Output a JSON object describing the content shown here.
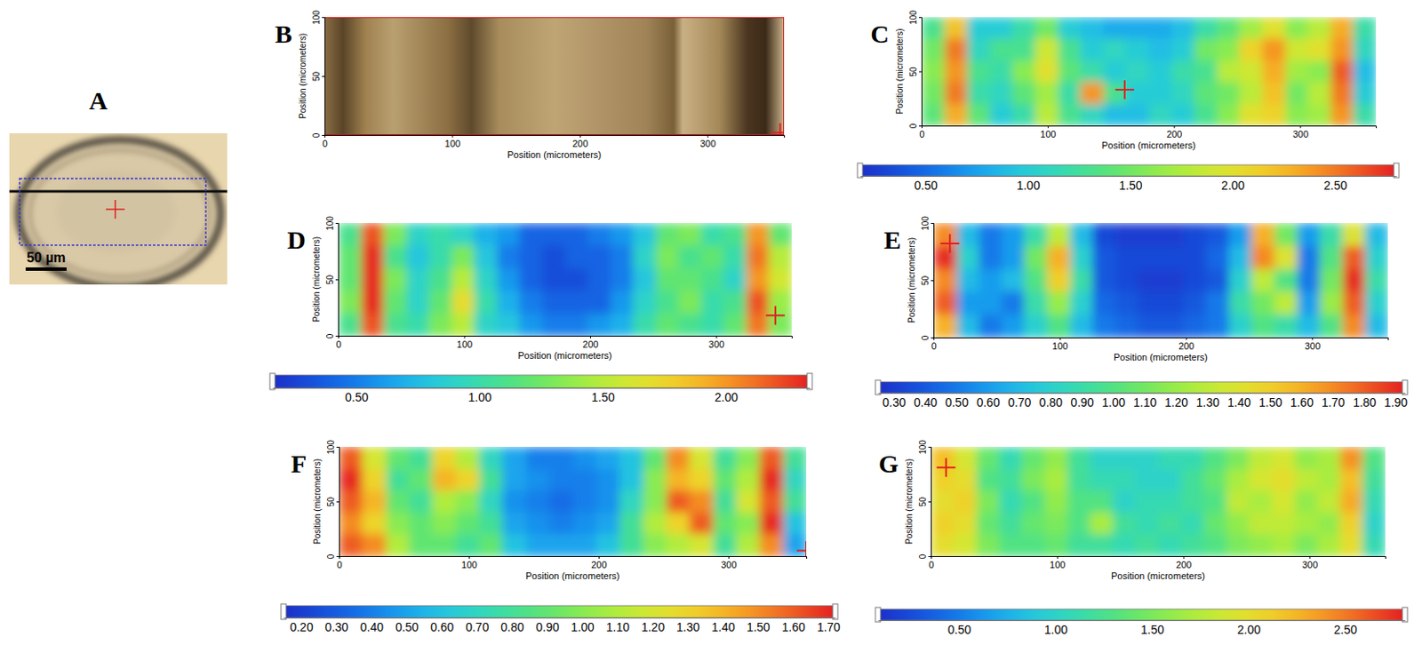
{
  "chart_data": [
    {
      "type": "image",
      "title": "A",
      "annotations": [
        "50 µm"
      ]
    },
    {
      "type": "image",
      "title": "B",
      "xlabel": "Position (micrometers)",
      "ylabel": "Position (micrometers)",
      "xlim": [
        0,
        360
      ],
      "ylim": [
        0,
        100
      ],
      "xticks": [
        0,
        100,
        200,
        300
      ],
      "yticks": [
        0,
        50,
        100
      ],
      "crosshair": {
        "x": 357,
        "y": 2
      }
    },
    {
      "type": "heatmap",
      "title": "C",
      "xlabel": "Position (micrometers)",
      "ylabel": "Position (micrometers)",
      "xlim": [
        0,
        360
      ],
      "ylim": [
        0,
        100
      ],
      "xticks": [
        0,
        100,
        200,
        300
      ],
      "yticks": [
        0,
        50,
        100
      ],
      "x": [
        9,
        27,
        45,
        63,
        81,
        99,
        117,
        135,
        153,
        171,
        189,
        207,
        225,
        243,
        261,
        279,
        297,
        315,
        333,
        351
      ],
      "y": [
        90,
        70,
        50,
        30,
        10
      ],
      "z": [
        [
          1.3,
          2.2,
          1.0,
          1.0,
          1.2,
          1.5,
          1.0,
          0.9,
          0.8,
          0.8,
          0.8,
          0.9,
          1.2,
          1.4,
          1.7,
          2.0,
          1.6,
          1.8,
          2.3,
          1.2
        ],
        [
          1.5,
          2.5,
          1.1,
          1.3,
          1.3,
          1.9,
          1.3,
          1.0,
          1.1,
          1.0,
          0.9,
          1.0,
          1.5,
          1.6,
          2.1,
          2.4,
          1.9,
          2.0,
          2.4,
          1.1
        ],
        [
          1.6,
          2.4,
          1.3,
          1.2,
          1.6,
          2.0,
          1.4,
          1.2,
          1.0,
          1.1,
          1.0,
          1.2,
          1.3,
          1.8,
          1.9,
          2.3,
          1.7,
          1.6,
          2.6,
          0.9
        ],
        [
          1.5,
          2.5,
          1.2,
          1.1,
          1.4,
          1.7,
          1.2,
          2.4,
          1.3,
          1.0,
          1.0,
          1.1,
          1.4,
          1.5,
          1.8,
          2.2,
          1.5,
          1.8,
          2.5,
          1.0
        ],
        [
          1.4,
          2.3,
          1.4,
          1.0,
          1.2,
          1.8,
          1.3,
          1.1,
          0.9,
          0.9,
          1.1,
          1.0,
          1.3,
          1.6,
          2.0,
          2.1,
          1.6,
          1.7,
          2.4,
          1.2
        ]
      ],
      "colorbar": {
        "range": [
          0.18,
          2.8
        ],
        "ticks": [
          {
            "value": 0.5,
            "label": "0.50"
          },
          {
            "value": 1,
            "label": "1.00"
          },
          {
            "value": 1.5,
            "label": "1.50"
          },
          {
            "value": 2,
            "label": "2.00"
          },
          {
            "value": 2.5,
            "label": "2.50"
          }
        ]
      },
      "crosshair": {
        "x": 161,
        "y": 33
      }
    },
    {
      "type": "heatmap",
      "title": "D",
      "xlabel": "Position (micrometers)",
      "ylabel": "Position (micrometers)",
      "xlim": [
        0,
        360
      ],
      "ylim": [
        0,
        100
      ],
      "xticks": [
        0,
        100,
        200,
        300
      ],
      "yticks": [
        0,
        50,
        100
      ],
      "x": [
        9,
        27,
        45,
        63,
        81,
        99,
        117,
        135,
        153,
        171,
        189,
        207,
        225,
        243,
        261,
        279,
        297,
        315,
        333,
        351
      ],
      "y": [
        90,
        70,
        50,
        30,
        10
      ],
      "z": [
        [
          1.1,
          2.2,
          1.3,
          0.9,
          1.0,
          0.9,
          0.7,
          0.6,
          0.4,
          0.4,
          0.4,
          0.5,
          0.6,
          0.8,
          1.2,
          1.3,
          1.0,
          1.1,
          2.0,
          1.2
        ],
        [
          1.2,
          2.3,
          1.1,
          0.8,
          1.0,
          1.3,
          0.8,
          0.5,
          0.4,
          0.3,
          0.4,
          0.4,
          0.5,
          0.9,
          1.3,
          1.1,
          1.2,
          1.0,
          2.1,
          1.5
        ],
        [
          1.2,
          2.3,
          1.3,
          0.9,
          1.1,
          1.5,
          0.9,
          0.6,
          0.4,
          0.3,
          0.3,
          0.4,
          0.5,
          0.8,
          1.2,
          1.2,
          1.1,
          0.9,
          2.0,
          1.6
        ],
        [
          1.3,
          2.3,
          1.2,
          0.9,
          1.2,
          1.7,
          1.0,
          0.7,
          0.5,
          0.4,
          0.4,
          0.4,
          0.6,
          0.9,
          1.1,
          1.3,
          1.0,
          1.1,
          2.2,
          1.4
        ],
        [
          1.1,
          2.2,
          1.1,
          1.0,
          1.3,
          1.5,
          0.9,
          0.8,
          0.6,
          0.5,
          0.5,
          0.6,
          0.7,
          1.0,
          1.2,
          1.1,
          1.0,
          1.2,
          2.1,
          1.3
        ]
      ],
      "colorbar": {
        "range": [
          0.16,
          2.34
        ],
        "ticks": [
          {
            "value": 0.5,
            "label": "0.50"
          },
          {
            "value": 1,
            "label": "1.00"
          },
          {
            "value": 1.5,
            "label": "1.50"
          },
          {
            "value": 2,
            "label": "2.00"
          }
        ]
      },
      "crosshair": {
        "x": 347,
        "y": 18
      }
    },
    {
      "type": "heatmap",
      "title": "E",
      "xlabel": "Position (micrometers)",
      "ylabel": "Position (micrometers)",
      "xlim": [
        0,
        360
      ],
      "ylim": [
        0,
        100
      ],
      "xticks": [
        0,
        100,
        200,
        300
      ],
      "yticks": [
        0,
        50,
        100
      ],
      "x": [
        9,
        27,
        45,
        63,
        81,
        99,
        117,
        135,
        153,
        171,
        189,
        207,
        225,
        243,
        261,
        279,
        297,
        315,
        333,
        351
      ],
      "y": [
        90,
        70,
        50,
        30,
        10
      ],
      "z": [
        [
          1.7,
          0.7,
          0.5,
          0.6,
          0.9,
          1.3,
          0.7,
          0.35,
          0.3,
          0.3,
          0.3,
          0.35,
          0.4,
          0.6,
          1.6,
          1.1,
          0.6,
          0.9,
          1.4,
          0.7
        ],
        [
          1.9,
          0.8,
          0.5,
          0.6,
          1.1,
          1.6,
          0.8,
          0.4,
          0.35,
          0.35,
          0.35,
          0.35,
          0.45,
          0.7,
          1.7,
          1.4,
          0.5,
          1.0,
          1.8,
          0.8
        ],
        [
          1.7,
          0.7,
          0.6,
          0.7,
          1.0,
          1.5,
          0.9,
          0.4,
          0.35,
          0.3,
          0.3,
          0.35,
          0.4,
          0.8,
          1.3,
          1.0,
          0.5,
          1.1,
          1.9,
          0.9
        ],
        [
          1.8,
          0.6,
          0.6,
          0.5,
          0.9,
          1.2,
          0.8,
          0.45,
          0.4,
          0.35,
          0.35,
          0.4,
          0.5,
          0.9,
          1.1,
          1.3,
          0.6,
          1.2,
          1.8,
          0.8
        ],
        [
          1.6,
          0.7,
          0.5,
          0.6,
          0.8,
          1.0,
          0.7,
          0.5,
          0.45,
          0.4,
          0.4,
          0.45,
          0.5,
          0.8,
          1.0,
          0.9,
          0.7,
          1.0,
          1.7,
          0.7
        ]
      ],
      "colorbar": {
        "range": [
          0.25,
          1.93
        ],
        "ticks": [
          {
            "value": 0.3,
            "label": "0.30"
          },
          {
            "value": 0.4,
            "label": "0.40"
          },
          {
            "value": 0.5,
            "label": "0.50"
          },
          {
            "value": 0.6,
            "label": "0.60"
          },
          {
            "value": 0.7,
            "label": "0.70"
          },
          {
            "value": 0.8,
            "label": "0.80"
          },
          {
            "value": 0.9,
            "label": "0.90"
          },
          {
            "value": 1,
            "label": "1.00"
          },
          {
            "value": 1.1,
            "label": "1.10"
          },
          {
            "value": 1.2,
            "label": "1.20"
          },
          {
            "value": 1.3,
            "label": "1.30"
          },
          {
            "value": 1.4,
            "label": "1.40"
          },
          {
            "value": 1.5,
            "label": "1.50"
          },
          {
            "value": 1.6,
            "label": "1.60"
          },
          {
            "value": 1.7,
            "label": "1.70"
          },
          {
            "value": 1.8,
            "label": "1.80"
          },
          {
            "value": 1.9,
            "label": "1.90"
          }
        ]
      },
      "crosshair": {
        "x": 13,
        "y": 82
      }
    },
    {
      "type": "heatmap",
      "title": "F",
      "xlabel": "Position (micrometers)",
      "ylabel": "Position (micrometers)",
      "xlim": [
        0,
        360
      ],
      "ylim": [
        0,
        100
      ],
      "xticks": [
        0,
        100,
        200,
        300
      ],
      "yticks": [
        0,
        50,
        100
      ],
      "x": [
        9,
        27,
        45,
        63,
        81,
        99,
        117,
        135,
        153,
        171,
        189,
        207,
        225,
        243,
        261,
        279,
        297,
        315,
        333,
        351
      ],
      "y": [
        90,
        70,
        50,
        30,
        10
      ],
      "z": [
        [
          1.6,
          1.2,
          0.9,
          0.8,
          1.3,
          1.1,
          0.7,
          0.5,
          0.4,
          0.4,
          0.45,
          0.5,
          0.6,
          0.9,
          1.5,
          1.2,
          0.8,
          1.0,
          1.6,
          0.8
        ],
        [
          1.7,
          1.3,
          0.8,
          0.9,
          1.4,
          1.3,
          0.8,
          0.5,
          0.45,
          0.4,
          0.4,
          0.45,
          0.6,
          1.0,
          1.4,
          1.3,
          0.9,
          1.1,
          1.7,
          0.7
        ],
        [
          1.6,
          1.4,
          0.9,
          0.8,
          1.1,
          1.0,
          0.7,
          0.45,
          0.4,
          0.35,
          0.4,
          0.45,
          0.7,
          1.0,
          1.6,
          1.5,
          0.8,
          1.2,
          1.6,
          0.8
        ],
        [
          1.5,
          1.3,
          1.0,
          0.9,
          1.0,
          0.9,
          0.8,
          0.5,
          0.45,
          0.4,
          0.45,
          0.5,
          0.8,
          1.1,
          1.3,
          1.6,
          0.9,
          1.0,
          1.7,
          0.6
        ],
        [
          1.6,
          1.5,
          1.1,
          0.9,
          0.9,
          0.8,
          0.9,
          0.6,
          0.5,
          0.5,
          0.5,
          0.6,
          0.8,
          1.0,
          1.1,
          1.2,
          0.8,
          1.1,
          1.5,
          0.5
        ]
      ],
      "colorbar": {
        "range": [
          0.15,
          1.72
        ],
        "ticks": [
          {
            "value": 0.2,
            "label": "0.20"
          },
          {
            "value": 0.3,
            "label": "0.30"
          },
          {
            "value": 0.4,
            "label": "0.40"
          },
          {
            "value": 0.5,
            "label": "0.50"
          },
          {
            "value": 0.6,
            "label": "0.60"
          },
          {
            "value": 0.7,
            "label": "0.70"
          },
          {
            "value": 0.8,
            "label": "0.80"
          },
          {
            "value": 0.9,
            "label": "0.90"
          },
          {
            "value": 1,
            "label": "1.00"
          },
          {
            "value": 1.1,
            "label": "1.10"
          },
          {
            "value": 1.2,
            "label": "1.20"
          },
          {
            "value": 1.3,
            "label": "1.30"
          },
          {
            "value": 1.4,
            "label": "1.40"
          },
          {
            "value": 1.5,
            "label": "1.50"
          },
          {
            "value": 1.6,
            "label": "1.60"
          },
          {
            "value": 1.7,
            "label": "1.70"
          }
        ]
      },
      "crosshair": {
        "x": 360,
        "y": 5
      }
    },
    {
      "type": "heatmap",
      "title": "G",
      "xlabel": "Position (micrometers)",
      "ylabel": "Position (micrometers)",
      "xlim": [
        0,
        360
      ],
      "ylim": [
        0,
        100
      ],
      "xticks": [
        0,
        100,
        200,
        300
      ],
      "yticks": [
        0,
        50,
        100
      ],
      "x": [
        9,
        27,
        45,
        63,
        81,
        99,
        117,
        135,
        153,
        171,
        189,
        207,
        225,
        243,
        261,
        279,
        297,
        315,
        333,
        351
      ],
      "y": [
        90,
        70,
        50,
        30,
        10
      ],
      "z": [
        [
          2.2,
          1.9,
          1.4,
          1.1,
          1.4,
          1.6,
          1.2,
          1.0,
          1.0,
          1.0,
          1.1,
          1.1,
          1.3,
          1.5,
          1.8,
          1.9,
          1.6,
          1.7,
          2.4,
          1.3
        ],
        [
          2.1,
          2.0,
          1.3,
          1.2,
          1.5,
          1.7,
          1.2,
          1.1,
          1.1,
          1.0,
          1.0,
          1.2,
          1.4,
          1.7,
          1.9,
          2.0,
          1.8,
          1.7,
          2.2,
          1.2
        ],
        [
          2.0,
          2.1,
          1.5,
          1.1,
          1.3,
          1.6,
          1.3,
          1.3,
          1.0,
          1.1,
          1.1,
          1.2,
          1.3,
          1.8,
          1.7,
          1.9,
          1.6,
          1.8,
          2.3,
          1.1
        ],
        [
          2.1,
          2.0,
          1.4,
          1.2,
          1.4,
          1.5,
          1.3,
          1.7,
          1.2,
          1.1,
          1.2,
          1.1,
          1.4,
          1.6,
          1.8,
          1.8,
          1.7,
          1.6,
          2.1,
          1.0
        ],
        [
          2.0,
          1.9,
          1.5,
          1.3,
          1.3,
          1.4,
          1.2,
          1.2,
          1.1,
          1.2,
          1.1,
          1.2,
          1.3,
          1.5,
          1.6,
          1.7,
          1.5,
          1.7,
          2.0,
          1.1
        ]
      ],
      "colorbar": {
        "range": [
          0.08,
          2.81
        ],
        "ticks": [
          {
            "value": 0.5,
            "label": "0.50"
          },
          {
            "value": 1,
            "label": "1.00"
          },
          {
            "value": 1.5,
            "label": "1.50"
          },
          {
            "value": 2,
            "label": "2.00"
          },
          {
            "value": 2.5,
            "label": "2.50"
          }
        ]
      },
      "crosshair": {
        "x": 12,
        "y": 81
      }
    }
  ]
}
